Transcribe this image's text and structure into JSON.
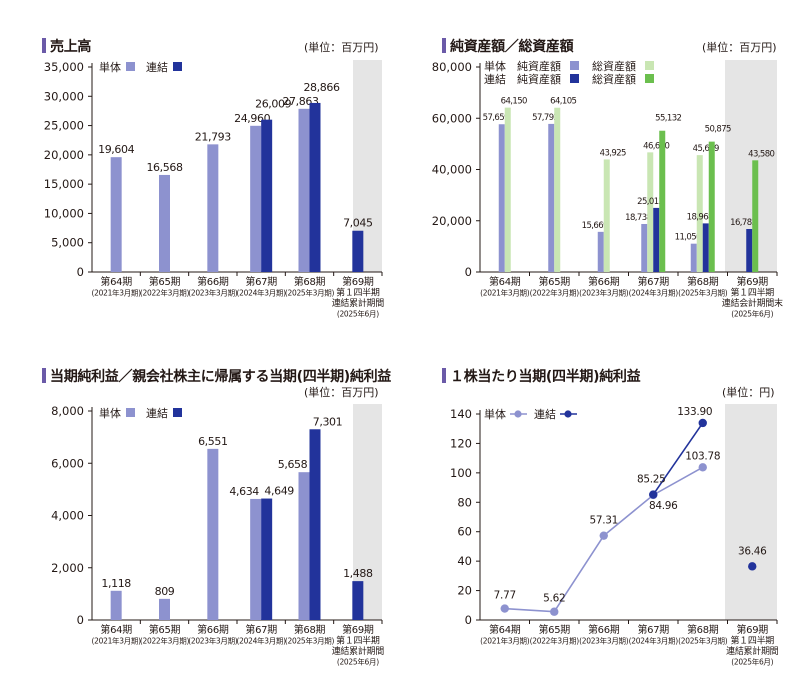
{
  "colors": {
    "tan": "#8d92cf",
    "ren": "#22339b",
    "tan_assets": "#8d92cf",
    "ren_assets": "#22339b",
    "tan_total": "#c9e6b3",
    "ren_total": "#6bbf4e",
    "highlight": "#e5e5e5",
    "title_bar": "#6b5aa8"
  },
  "panels": [
    {
      "title": "売上高",
      "unit": "(単位：百万円)",
      "legend": [
        "単体",
        "連結"
      ],
      "chart_data": {
        "type": "bar",
        "categories": [
          [
            "第64期",
            "(2021年3月期)"
          ],
          [
            "第65期",
            "(2022年3月期)"
          ],
          [
            "第66期",
            "(2023年3月期)"
          ],
          [
            "第67期",
            "(2024年3月期)"
          ],
          [
            "第68期",
            "(2025年3月期)"
          ],
          [
            "第69期",
            "第１四半期",
            "連結累計期間",
            "(2025年6月)"
          ]
        ],
        "series": [
          {
            "name": "単体",
            "values": [
              19604,
              16568,
              21793,
              24960,
              27863,
              null
            ],
            "labels": [
              "19,604",
              "16,568",
              "21,793",
              "24,960",
              "27,863",
              ""
            ]
          },
          {
            "name": "連結",
            "values": [
              null,
              null,
              null,
              26009,
              28866,
              7045
            ],
            "labels": [
              "",
              "",
              "",
              "26,009",
              "28,866",
              "7,045"
            ]
          }
        ],
        "yticks": [
          0,
          5000,
          10000,
          15000,
          20000,
          25000,
          30000,
          35000
        ],
        "ytick_labels": [
          "0",
          "5,000",
          "10,000",
          "15,000",
          "20,000",
          "25,000",
          "30,000",
          "35,000"
        ],
        "ylim": [
          0,
          35000
        ]
      }
    },
    {
      "title": "純資産額／総資産額",
      "unit": "(単位：百万円)",
      "legend_rows": [
        [
          "単体",
          "純資産額",
          "総資産額"
        ],
        [
          "連結",
          "純資産額",
          "総資産額"
        ]
      ],
      "chart_data": {
        "type": "bar",
        "categories": [
          [
            "第64期",
            "(2021年3月期)"
          ],
          [
            "第65期",
            "(2022年3月期)"
          ],
          [
            "第66期",
            "(2023年3月期)"
          ],
          [
            "第67期",
            "(2024年3月期)"
          ],
          [
            "第68期",
            "(2025年3月期)"
          ],
          [
            "第69期",
            "第１四半期",
            "連結会計期間末",
            "(2025年6月)"
          ]
        ],
        "series": [
          {
            "name": "単体 純資産額",
            "values": [
              57659,
              57792,
              15669,
              18738,
              11050,
              null
            ],
            "labels": [
              "57,659",
              "57,792",
              "15,669",
              "18,738",
              "11,050",
              ""
            ]
          },
          {
            "name": "単体 総資産額",
            "values": [
              64150,
              64105,
              43925,
              46690,
              45609,
              null
            ],
            "labels": [
              "64,150",
              "64,105",
              "43,925",
              "46,690",
              "45,609",
              ""
            ]
          },
          {
            "name": "連結 純資産額",
            "values": [
              null,
              null,
              null,
              25013,
              18968,
              16783
            ],
            "labels": [
              "",
              "",
              "",
              "25,013",
              "18,968",
              "16,783"
            ]
          },
          {
            "name": "連結 総資産額",
            "values": [
              null,
              null,
              null,
              55132,
              50875,
              43580
            ],
            "labels": [
              "",
              "",
              "",
              "55,132",
              "50,875",
              "43,580"
            ]
          }
        ],
        "yticks": [
          0,
          20000,
          40000,
          60000,
          80000
        ],
        "ytick_labels": [
          "0",
          "20,000",
          "40,000",
          "60,000",
          "80,000"
        ],
        "ylim": [
          0,
          80000
        ]
      }
    },
    {
      "title": "当期純利益／親会社株主に帰属する当期(四半期)純利益",
      "unit": "(単位：百万円)",
      "legend": [
        "単体",
        "連結"
      ],
      "chart_data": {
        "type": "bar",
        "categories": [
          [
            "第64期",
            "(2021年3月期)"
          ],
          [
            "第65期",
            "(2022年3月期)"
          ],
          [
            "第66期",
            "(2023年3月期)"
          ],
          [
            "第67期",
            "(2024年3月期)"
          ],
          [
            "第68期",
            "(2025年3月期)"
          ],
          [
            "第69期",
            "第１四半期",
            "連結累計期間",
            "(2025年6月)"
          ]
        ],
        "series": [
          {
            "name": "単体",
            "values": [
              1118,
              809,
              6551,
              4634,
              5658,
              null
            ],
            "labels": [
              "1,118",
              "809",
              "6,551",
              "4,634",
              "5,658",
              ""
            ]
          },
          {
            "name": "連結",
            "values": [
              null,
              null,
              null,
              4649,
              7301,
              1488
            ],
            "labels": [
              "",
              "",
              "",
              "4,649",
              "7,301",
              "1,488"
            ]
          }
        ],
        "yticks": [
          0,
          2000,
          4000,
          6000,
          8000
        ],
        "ytick_labels": [
          "0",
          "2,000",
          "4,000",
          "6,000",
          "8,000"
        ],
        "ylim": [
          0,
          8000
        ]
      }
    },
    {
      "title": "１株当たり当期(四半期)純利益",
      "unit": "(単位：円)",
      "legend": [
        "単体",
        "連結"
      ],
      "chart_data": {
        "type": "line",
        "categories": [
          [
            "第64期",
            "(2021年3月期)"
          ],
          [
            "第65期",
            "(2022年3月期)"
          ],
          [
            "第66期",
            "(2023年3月期)"
          ],
          [
            "第67期",
            "(2024年3月期)"
          ],
          [
            "第68期",
            "(2025年3月期)"
          ],
          [
            "第69期",
            "第１四半期",
            "連結累計期間",
            "(2025年6月)"
          ]
        ],
        "series": [
          {
            "name": "単体",
            "values": [
              7.77,
              5.62,
              57.31,
              84.96,
              103.78,
              null
            ],
            "labels": [
              "7.77",
              "5.62",
              "57.31",
              "84.96",
              "103.78",
              ""
            ]
          },
          {
            "name": "連結",
            "values": [
              null,
              null,
              null,
              85.25,
              133.9,
              36.46
            ],
            "labels": [
              "",
              "",
              "",
              "85.25",
              "133.90",
              "36.46"
            ]
          }
        ],
        "yticks": [
          0,
          20,
          40,
          60,
          80,
          100,
          120,
          140
        ],
        "ytick_labels": [
          "0",
          "20",
          "40",
          "60",
          "80",
          "100",
          "120",
          "140"
        ],
        "ylim": [
          0,
          140
        ]
      }
    }
  ]
}
